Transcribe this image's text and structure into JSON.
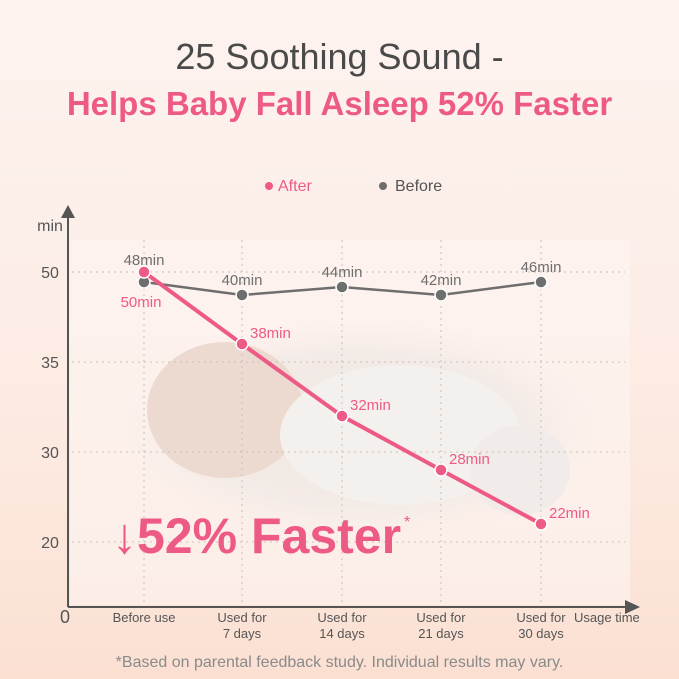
{
  "header": {
    "title": "25 Soothing Sound -",
    "subtitle": "Helps Baby Fall Asleep 52% Faster"
  },
  "footnote": "*Based on parental feedback study. Individual results may vary.",
  "chart_data": {
    "type": "line",
    "ylabel": "min",
    "xlabel": "Usage time",
    "y_ticks": [
      20,
      30,
      35,
      50
    ],
    "y_origin_label": "0",
    "categories": [
      "Before use",
      "Used for\n7 days",
      "Used for\n14 days",
      "Used for\n21 days",
      "Used for\n30 days"
    ],
    "grid": true,
    "legend_placement": "top",
    "series": [
      {
        "name": "After",
        "color": "#ee5a86",
        "values": [
          50,
          38,
          32,
          28,
          22
        ],
        "labels": [
          "50min",
          "38min",
          "32min",
          "28min",
          "22min"
        ]
      },
      {
        "name": "Before",
        "color": "#6e6e6e",
        "values": [
          48,
          40,
          44,
          42,
          46
        ],
        "labels": [
          "48min",
          "40min",
          "44min",
          "42min",
          "46min"
        ]
      }
    ],
    "annotation": {
      "text": "↓52% Faster",
      "mark": "*",
      "color": "#ee5a86"
    }
  }
}
